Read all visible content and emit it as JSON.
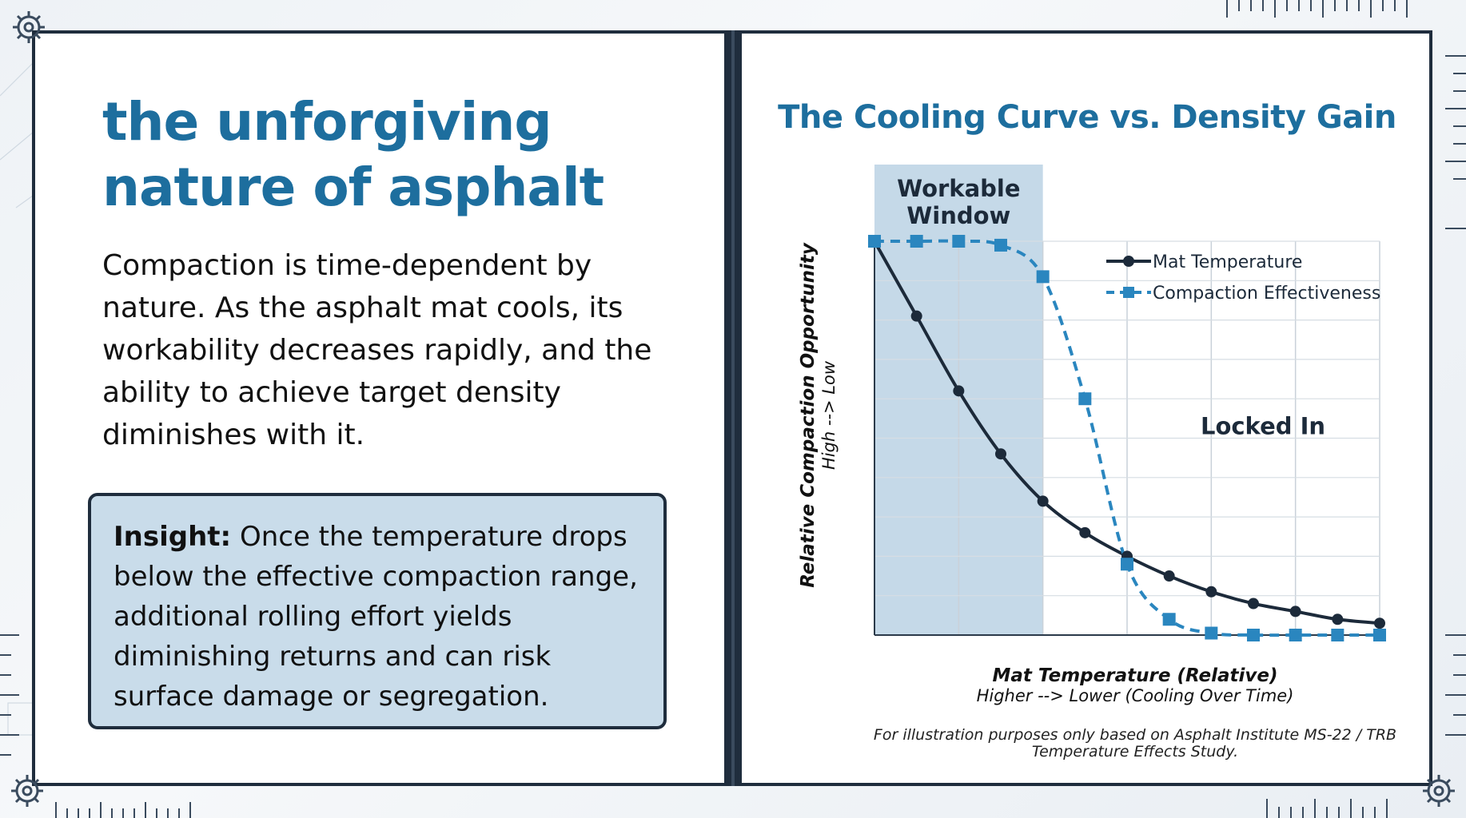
{
  "left": {
    "title_line1": "the unforgiving",
    "title_line2": "nature of asphalt",
    "body": "Compaction is time-dependent by nature. As the asphalt mat cools, its workability decreases rapidly, and the ability to achieve target density diminishes with it.",
    "insight_label": "Insight:",
    "insight_text": " Once the temperature drops below the effective compaction range, additional rolling effort yields diminishing returns and can risk surface damage or segregation."
  },
  "caption": {
    "line1": "For illustration purposes only based on Asphalt Institute MS-22 / TRB",
    "line2": "Temperature Effects Study."
  },
  "colors": {
    "accent": "#1d6e9e",
    "frame": "#1f2d3d",
    "window_shade": "#c5d9e8",
    "temperature_line": "#1c2a3a",
    "effectiveness_line": "#2a86bf"
  },
  "chart_data": {
    "type": "line",
    "title": "The Cooling Curve vs. Density Gain",
    "xlabel": "Mat Temperature (Relative)",
    "xlabel_sub": "Higher --> Lower (Cooling Over Time)",
    "ylabel": "Relative Compaction Opportunity",
    "ylabel_sub": "High --> Low",
    "x": [
      0,
      1,
      2,
      3,
      4,
      5,
      6,
      7,
      8,
      9,
      10,
      11,
      12
    ],
    "xlim": [
      0,
      12
    ],
    "ylim": [
      0,
      100
    ],
    "grid": true,
    "legend_position": "top-right",
    "series": [
      {
        "name": "Mat Temperature",
        "marker": "circle",
        "style": "solid",
        "values": [
          100,
          81,
          62,
          46,
          34,
          26,
          20,
          15,
          11,
          8,
          6,
          4,
          3
        ]
      },
      {
        "name": "Compaction Effectiveness",
        "marker": "square",
        "style": "dashed",
        "values": [
          100,
          100,
          100,
          99,
          91,
          60,
          18,
          4,
          0.5,
          0,
          0,
          0,
          0
        ]
      }
    ],
    "annotations": [
      {
        "text_line1": "Workable",
        "text_line2": "Window",
        "x_start": 0,
        "x_end": 4
      },
      {
        "text": "Locked In",
        "x": 9,
        "y": 53
      }
    ]
  }
}
